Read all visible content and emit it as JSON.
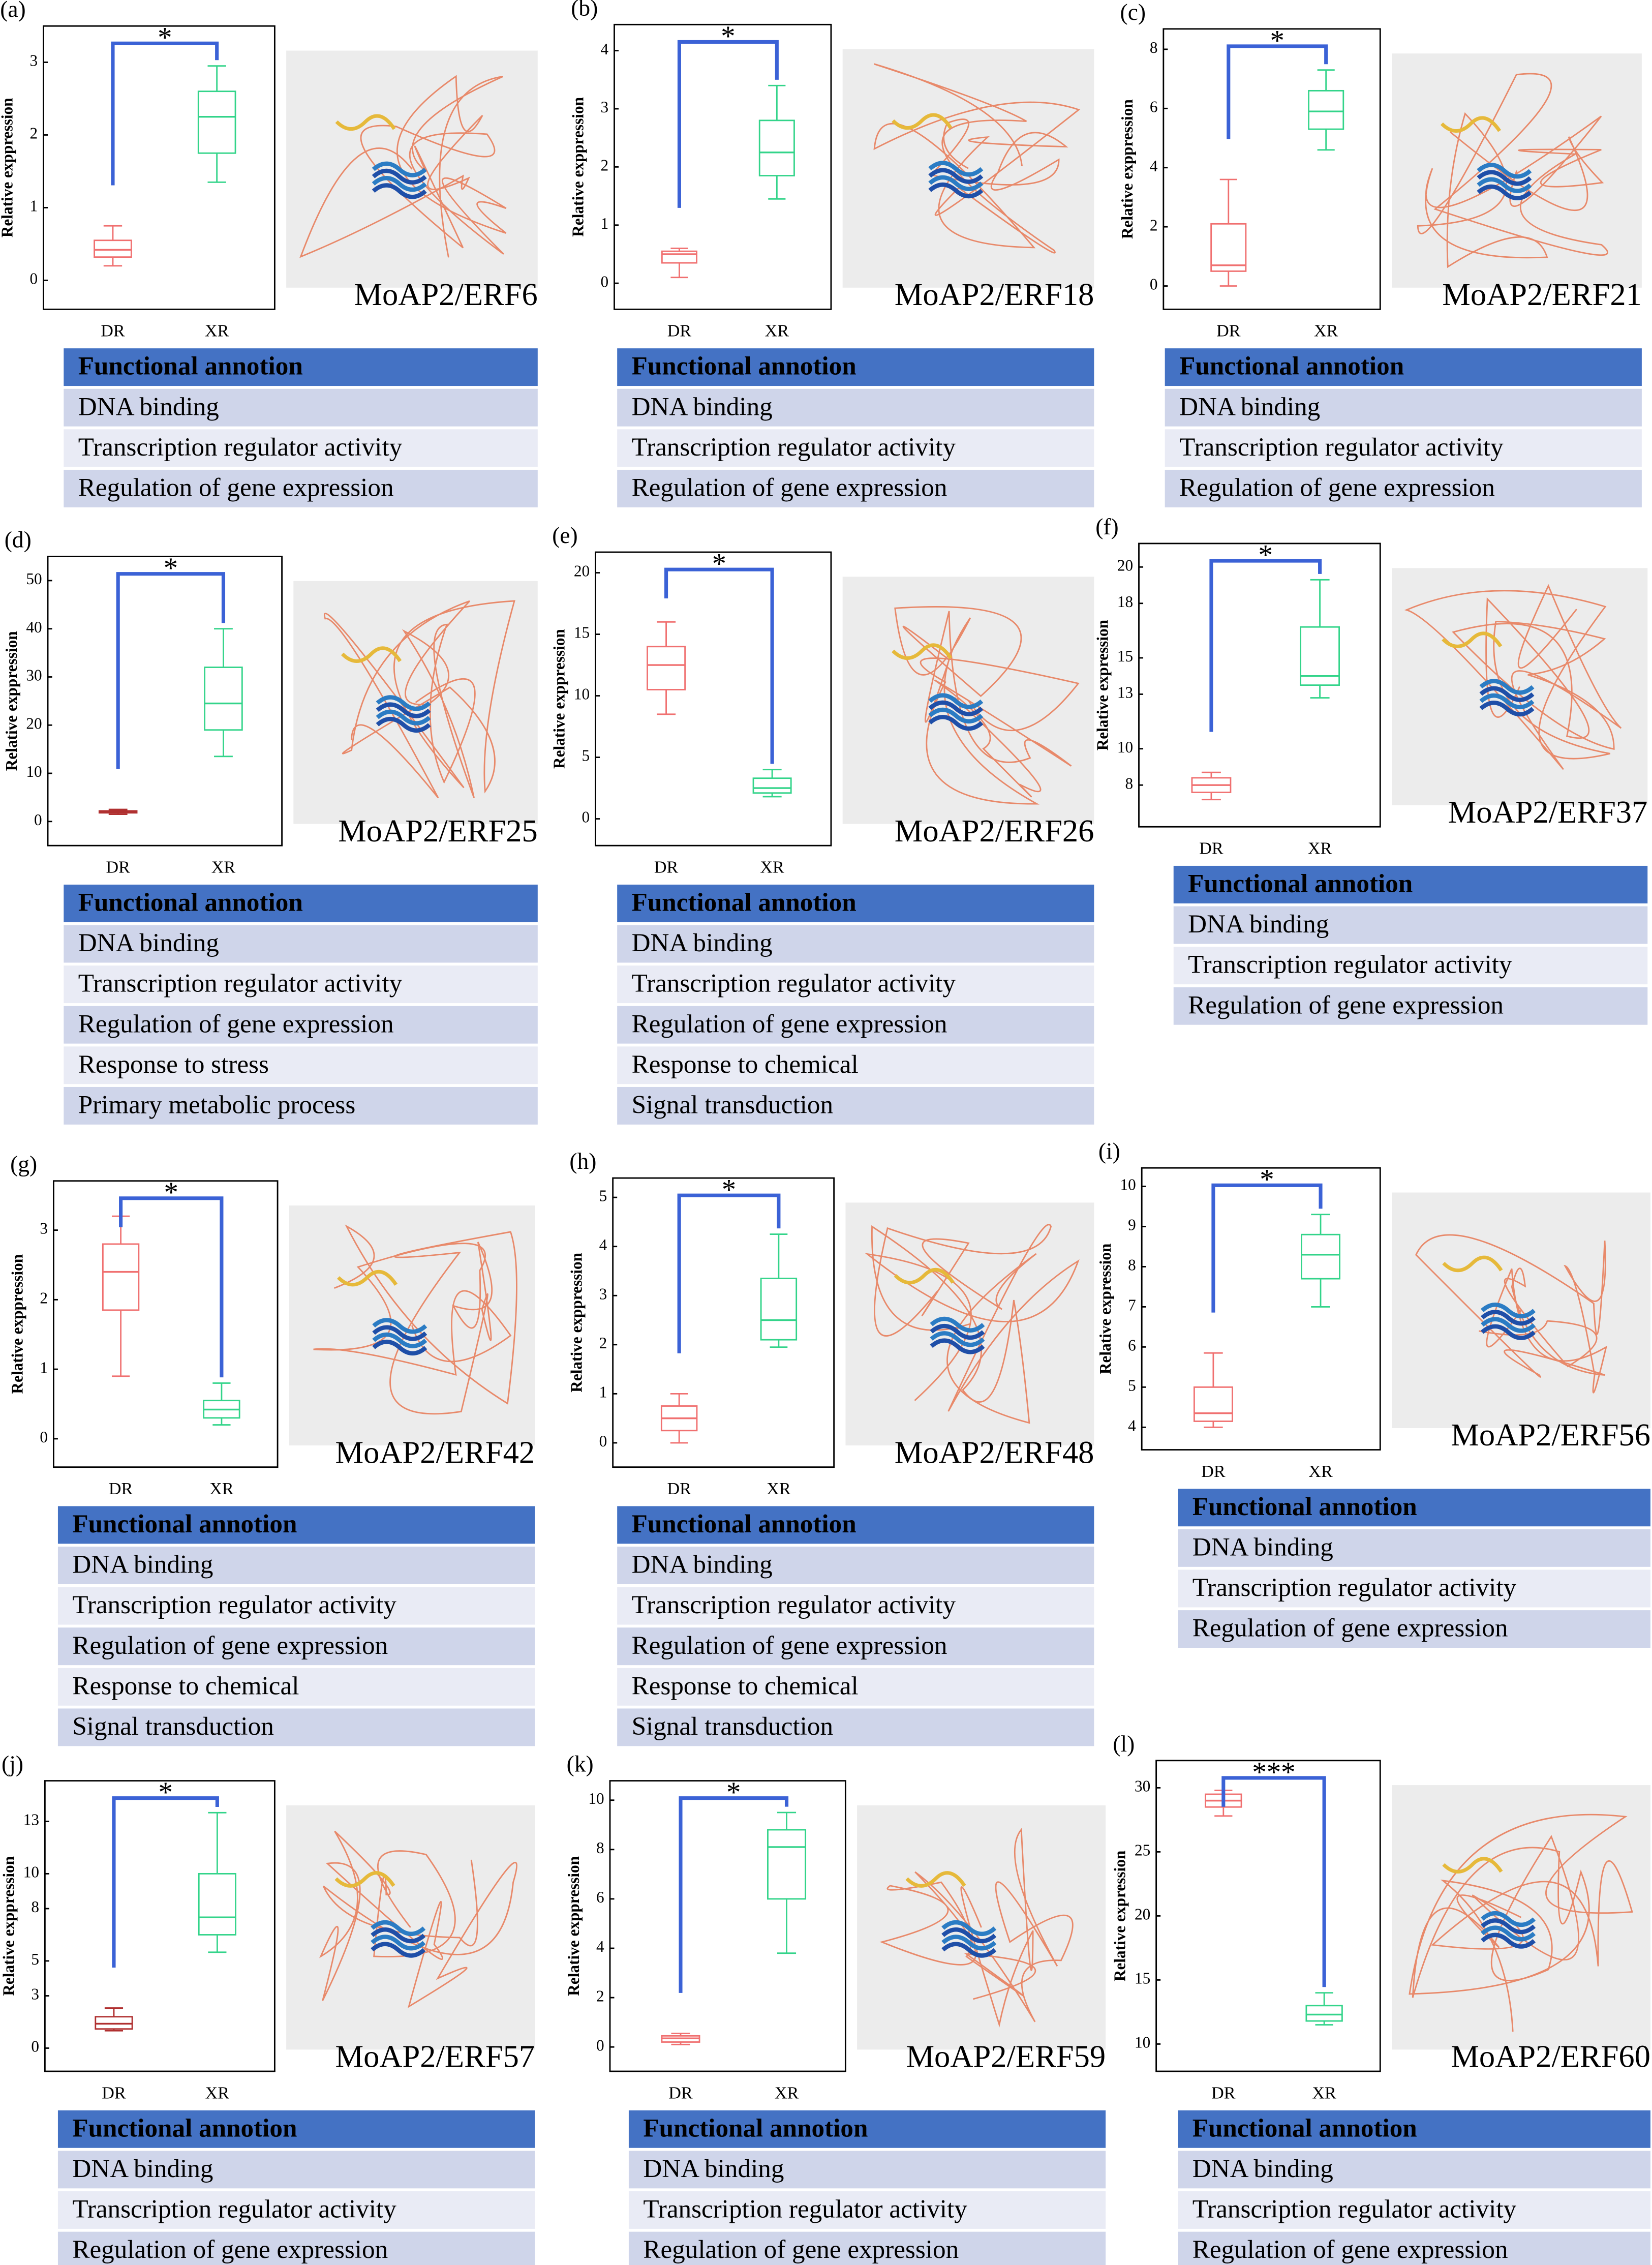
{
  "chart_data": [
    {
      "type": "box",
      "panel": "(a)",
      "ylabel": "Relative exppression",
      "categories": [
        "DR",
        "XR"
      ],
      "ylim": [
        -0.2,
        3.3
      ],
      "yticks": [
        0,
        1,
        2,
        3
      ],
      "boxes": [
        {
          "min": 0.2,
          "q1": 0.32,
          "median": 0.42,
          "q3": 0.55,
          "max": 0.75,
          "color": "#f07070"
        },
        {
          "min": 1.35,
          "q1": 1.75,
          "median": 2.25,
          "q3": 2.6,
          "max": 2.95,
          "color": "#33d48a"
        }
      ],
      "significance": "*",
      "bracket_color": "#3b62d6",
      "gene": "MoAP2/ERF6",
      "annotation": {
        "header": "Functional annotion",
        "rows": [
          "DNA binding",
          "Transcription regulator activity",
          "Regulation of gene expression"
        ]
      }
    },
    {
      "type": "box",
      "panel": "(b)",
      "ylabel": "Relative exppression",
      "categories": [
        "DR",
        "XR"
      ],
      "ylim": [
        -0.2,
        4.2
      ],
      "yticks": [
        0,
        1,
        2,
        3,
        4
      ],
      "boxes": [
        {
          "min": 0.1,
          "q1": 0.35,
          "median": 0.5,
          "q3": 0.55,
          "max": 0.6,
          "color": "#f07070"
        },
        {
          "min": 1.45,
          "q1": 1.85,
          "median": 2.25,
          "q3": 2.8,
          "max": 3.4,
          "color": "#33d48a"
        }
      ],
      "significance": "*",
      "bracket_color": "#3b62d6",
      "gene": "MoAP2/ERF18",
      "annotation": {
        "header": "Functional annotion",
        "rows": [
          "DNA binding",
          "Transcription regulator activity",
          "Regulation of gene expression"
        ]
      }
    },
    {
      "type": "box",
      "panel": "(c)",
      "ylabel": "Relative exppression",
      "categories": [
        "DR",
        "XR"
      ],
      "ylim": [
        -0.3,
        8.2
      ],
      "yticks": [
        0,
        2,
        4,
        6,
        8
      ],
      "boxes": [
        {
          "min": 0,
          "q1": 0.5,
          "median": 0.7,
          "q3": 2.1,
          "max": 3.6,
          "color": "#f07070"
        },
        {
          "min": 4.6,
          "q1": 5.3,
          "median": 5.9,
          "q3": 6.6,
          "max": 7.3,
          "color": "#33d48a"
        }
      ],
      "significance": "*",
      "bracket_color": "#3b62d6",
      "gene": "MoAP2/ERF21",
      "annotation": {
        "header": "Functional annotion",
        "rows": [
          "DNA binding",
          "Transcription regulator activity",
          "Regulation of gene expression"
        ]
      }
    },
    {
      "type": "box",
      "panel": "(d)",
      "ylabel": "Relative exppression",
      "categories": [
        "DR",
        "XR"
      ],
      "ylim": [
        -2,
        52
      ],
      "yticks": [
        0,
        10,
        20,
        30,
        40,
        50
      ],
      "boxes": [
        {
          "min": 1.5,
          "q1": 1.8,
          "median": 2,
          "q3": 2.2,
          "max": 2.5,
          "color": "#b03030"
        },
        {
          "min": 13.5,
          "q1": 19,
          "median": 24.5,
          "q3": 32,
          "max": 40,
          "color": "#33d48a"
        }
      ],
      "significance": "*",
      "bracket_color": "#3b62d6",
      "gene": "MoAP2/ERF25",
      "annotation": {
        "header": "Functional annotion",
        "rows": [
          "DNA binding",
          "Transcription regulator activity",
          "Regulation of gene expression",
          "Response to stress",
          "Primary metabolic process"
        ]
      }
    },
    {
      "type": "box",
      "panel": "(e)",
      "ylabel": "Relative exppression",
      "categories": [
        "DR",
        "XR"
      ],
      "ylim": [
        -1,
        20.5
      ],
      "yticks": [
        0,
        5,
        10,
        15,
        20
      ],
      "boxes": [
        {
          "min": 8.5,
          "q1": 10.5,
          "median": 12.5,
          "q3": 14,
          "max": 16,
          "color": "#f07070"
        },
        {
          "min": 1.8,
          "q1": 2.1,
          "median": 2.5,
          "q3": 3.3,
          "max": 4,
          "color": "#33d48a"
        }
      ],
      "significance": "*",
      "bracket_color": "#3b62d6",
      "gene": "MoAP2/ERF26",
      "annotation": {
        "header": "Functional annotion",
        "rows": [
          "DNA binding",
          "Transcription regulator activity",
          "Regulation of gene expression",
          "Response to chemical",
          "Signal transduction"
        ]
      }
    },
    {
      "type": "box",
      "panel": "(f)",
      "ylabel": "Relative expression",
      "categories": [
        "DR",
        "XR"
      ],
      "ylim": [
        6.5,
        20.5
      ],
      "yticks": [
        8,
        10,
        13,
        15,
        18,
        20
      ],
      "boxes": [
        {
          "min": 7.2,
          "q1": 7.6,
          "median": 8,
          "q3": 8.4,
          "max": 8.7,
          "color": "#f07070"
        },
        {
          "min": 12.8,
          "q1": 13.5,
          "median": 14,
          "q3": 16.7,
          "max": 19.3,
          "color": "#33d48a"
        }
      ],
      "significance": "*",
      "bracket_color": "#3b62d6",
      "gene": "MoAP2/ERF37",
      "annotation": {
        "header": "Functional annotion",
        "rows": [
          "DNA binding",
          "Transcription regulator activity",
          "Regulation of gene expression"
        ]
      }
    },
    {
      "type": "box",
      "panel": "(g)",
      "ylabel": "Relative exppression",
      "categories": [
        "DR",
        "XR"
      ],
      "ylim": [
        -0.2,
        3.5
      ],
      "yticks": [
        0,
        1,
        2,
        3
      ],
      "boxes": [
        {
          "min": 0.9,
          "q1": 1.85,
          "median": 2.4,
          "q3": 2.8,
          "max": 3.2,
          "color": "#f07070"
        },
        {
          "min": 0.2,
          "q1": 0.3,
          "median": 0.42,
          "q3": 0.55,
          "max": 0.8,
          "color": "#33d48a"
        }
      ],
      "significance": "*",
      "bracket_color": "#3b62d6",
      "gene": "MoAP2/ERF42",
      "annotation": {
        "header": "Functional annotion",
        "rows": [
          "DNA binding",
          "Transcription regulator activity",
          "Regulation of gene expression",
          "Response to chemical",
          "Signal transduction"
        ]
      }
    },
    {
      "type": "box",
      "panel": "(h)",
      "ylabel": "Relative exppression",
      "categories": [
        "DR",
        "XR"
      ],
      "ylim": [
        -0.2,
        5.1
      ],
      "yticks": [
        0,
        1,
        2,
        3,
        4,
        5
      ],
      "boxes": [
        {
          "min": 0,
          "q1": 0.25,
          "median": 0.5,
          "q3": 0.75,
          "max": 1,
          "color": "#f07070"
        },
        {
          "min": 1.95,
          "q1": 2.1,
          "median": 2.5,
          "q3": 3.35,
          "max": 4.25,
          "color": "#33d48a"
        }
      ],
      "significance": "*",
      "bracket_color": "#3b62d6",
      "gene": "MoAP2/ERF48",
      "annotation": {
        "header": "Functional annotion",
        "rows": [
          "DNA binding",
          "Transcription regulator activity",
          "Regulation of gene expression",
          "Response to chemical",
          "Signal transduction"
        ]
      }
    },
    {
      "type": "box",
      "panel": "(i)",
      "ylabel": "Relative expression",
      "categories": [
        "DR",
        "XR"
      ],
      "ylim": [
        3.8,
        10.1
      ],
      "yticks": [
        4,
        5,
        6,
        7,
        8,
        9,
        10
      ],
      "boxes": [
        {
          "min": 4,
          "q1": 4.15,
          "median": 4.35,
          "q3": 5,
          "max": 5.85,
          "color": "#f07070"
        },
        {
          "min": 7,
          "q1": 7.7,
          "median": 8.3,
          "q3": 8.8,
          "max": 9.3,
          "color": "#33d48a"
        }
      ],
      "significance": "*",
      "bracket_color": "#3b62d6",
      "gene": "MoAP2/ERF56",
      "annotation": {
        "header": "Functional annotion",
        "rows": [
          "DNA binding",
          "Transcription regulator activity",
          "Regulation of gene expression"
        ]
      }
    },
    {
      "type": "box",
      "panel": "(j)",
      "ylabel": "Relative exppression",
      "categories": [
        "DR",
        "XR"
      ],
      "ylim": [
        -0.5,
        14.5
      ],
      "yticks": [
        0,
        3,
        5,
        8,
        10,
        13
      ],
      "boxes": [
        {
          "min": 1,
          "q1": 1.1,
          "median": 1.4,
          "q3": 1.8,
          "max": 2.3,
          "color": "#b03030"
        },
        {
          "min": 5.5,
          "q1": 6.5,
          "median": 7.5,
          "q3": 10,
          "max": 13.5,
          "color": "#33d48a"
        }
      ],
      "significance": "*",
      "bracket_color": "#3b62d6",
      "gene": "MoAP2/ERF57",
      "annotation": {
        "header": "Functional annotion",
        "rows": [
          "DNA binding",
          "Transcription regulator activity",
          "Regulation of gene expression"
        ]
      }
    },
    {
      "type": "box",
      "panel": "(k)",
      "ylabel": "Relative exppression",
      "categories": [
        "DR",
        "XR"
      ],
      "ylim": [
        -0.4,
        10.2
      ],
      "yticks": [
        0,
        2,
        4,
        6,
        8,
        10
      ],
      "boxes": [
        {
          "min": 0.1,
          "q1": 0.2,
          "median": 0.35,
          "q3": 0.45,
          "max": 0.55,
          "color": "#f07070"
        },
        {
          "min": 3.8,
          "q1": 6,
          "median": 8.1,
          "q3": 8.8,
          "max": 9.5,
          "color": "#33d48a"
        }
      ],
      "significance": "*",
      "bracket_color": "#3b62d6",
      "gene": "MoAP2/ERF59",
      "annotation": {
        "header": "Functional annotion",
        "rows": [
          "DNA binding",
          "Transcription regulator activity",
          "Regulation of gene expression"
        ]
      }
    },
    {
      "type": "box",
      "panel": "(l)",
      "ylabel": "Relative expression",
      "categories": [
        "DR",
        "XR"
      ],
      "ylim": [
        9,
        31
      ],
      "yticks": [
        10,
        15,
        20,
        25,
        30
      ],
      "boxes": [
        {
          "min": 27.8,
          "q1": 28.5,
          "median": 29,
          "q3": 29.5,
          "max": 29.8,
          "color": "#f07070"
        },
        {
          "min": 11.5,
          "q1": 11.8,
          "median": 12.3,
          "q3": 13,
          "max": 14,
          "color": "#33d48a"
        }
      ],
      "significance": "***",
      "bracket_color": "#3b62d6",
      "gene": "MoAP2/ERF60",
      "annotation": {
        "header": "Functional annotion",
        "rows": [
          "DNA binding",
          "Transcription regulator activity",
          "Regulation of gene expression"
        ]
      }
    }
  ]
}
